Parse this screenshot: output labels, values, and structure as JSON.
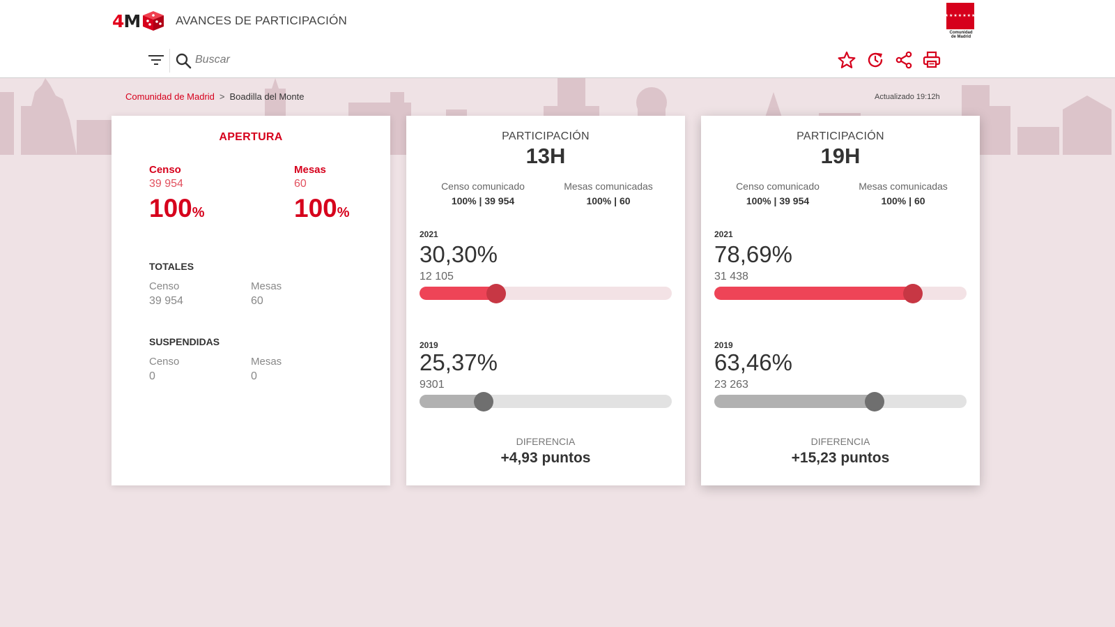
{
  "header": {
    "logo_prefix": "4",
    "logo_suffix": "M",
    "app_title": "AVANCES DE PARTICIPACIÓN",
    "cm_logo": {
      "stars": "★★★★★★★",
      "text_line1": "Comunidad",
      "text_line2": "de Madrid"
    },
    "search": {
      "placeholder": "Buscar",
      "value": ""
    },
    "icons": [
      "filter-icon",
      "search-icon",
      "star-icon",
      "history-icon",
      "share-icon",
      "print-icon"
    ]
  },
  "breadcrumb": {
    "root": "Comunidad de Madrid",
    "separator": ">",
    "current": "Boadilla del Monte"
  },
  "updated": "Actualizado 19:12h",
  "colors": {
    "accent": "#d6001c",
    "bar_red": "#ee4457",
    "knob_red": "#c73744",
    "bar_gray": "#b1b1b1",
    "knob_gray": "#6f6f6f",
    "background": "#efe2e5"
  },
  "apertura": {
    "title": "APERTURA",
    "censo_label": "Censo",
    "censo_value": "39 954",
    "censo_pct": "100",
    "mesas_label": "Mesas",
    "mesas_value": "60",
    "mesas_pct": "100",
    "pct_unit": "%",
    "totales": {
      "title": "TOTALES",
      "censo_label": "Censo",
      "censo_value": "39 954",
      "mesas_label": "Mesas",
      "mesas_value": "60"
    },
    "suspendidas": {
      "title": "SUSPENDIDAS",
      "censo_label": "Censo",
      "censo_value": "0",
      "mesas_label": "Mesas",
      "mesas_value": "0"
    }
  },
  "participacion": [
    {
      "title": "PARTICIPACIÓN",
      "hour": "13H",
      "censo_label": "Censo comunicado",
      "censo_value": "100% | 39 954",
      "mesas_label": "Mesas comunicadas",
      "mesas_value": "100% | 60",
      "current": {
        "year": "2021",
        "pct": "30,30%",
        "votes": "12 105",
        "fraction": 0.303
      },
      "previous": {
        "year": "2019",
        "pct": "25,37%",
        "votes": "9301",
        "fraction": 0.2537
      },
      "diff_label": "DIFERENCIA",
      "diff_value": "+4,93 puntos"
    },
    {
      "title": "PARTICIPACIÓN",
      "hour": "19H",
      "censo_label": "Censo comunicado",
      "censo_value": "100% | 39 954",
      "mesas_label": "Mesas comunicadas",
      "mesas_value": "100% | 60",
      "current": {
        "year": "2021",
        "pct": "78,69%",
        "votes": "31 438",
        "fraction": 0.7869
      },
      "previous": {
        "year": "2019",
        "pct": "63,46%",
        "votes": "23 263",
        "fraction": 0.6346
      },
      "diff_label": "DIFERENCIA",
      "diff_value": "+15,23 puntos"
    }
  ]
}
